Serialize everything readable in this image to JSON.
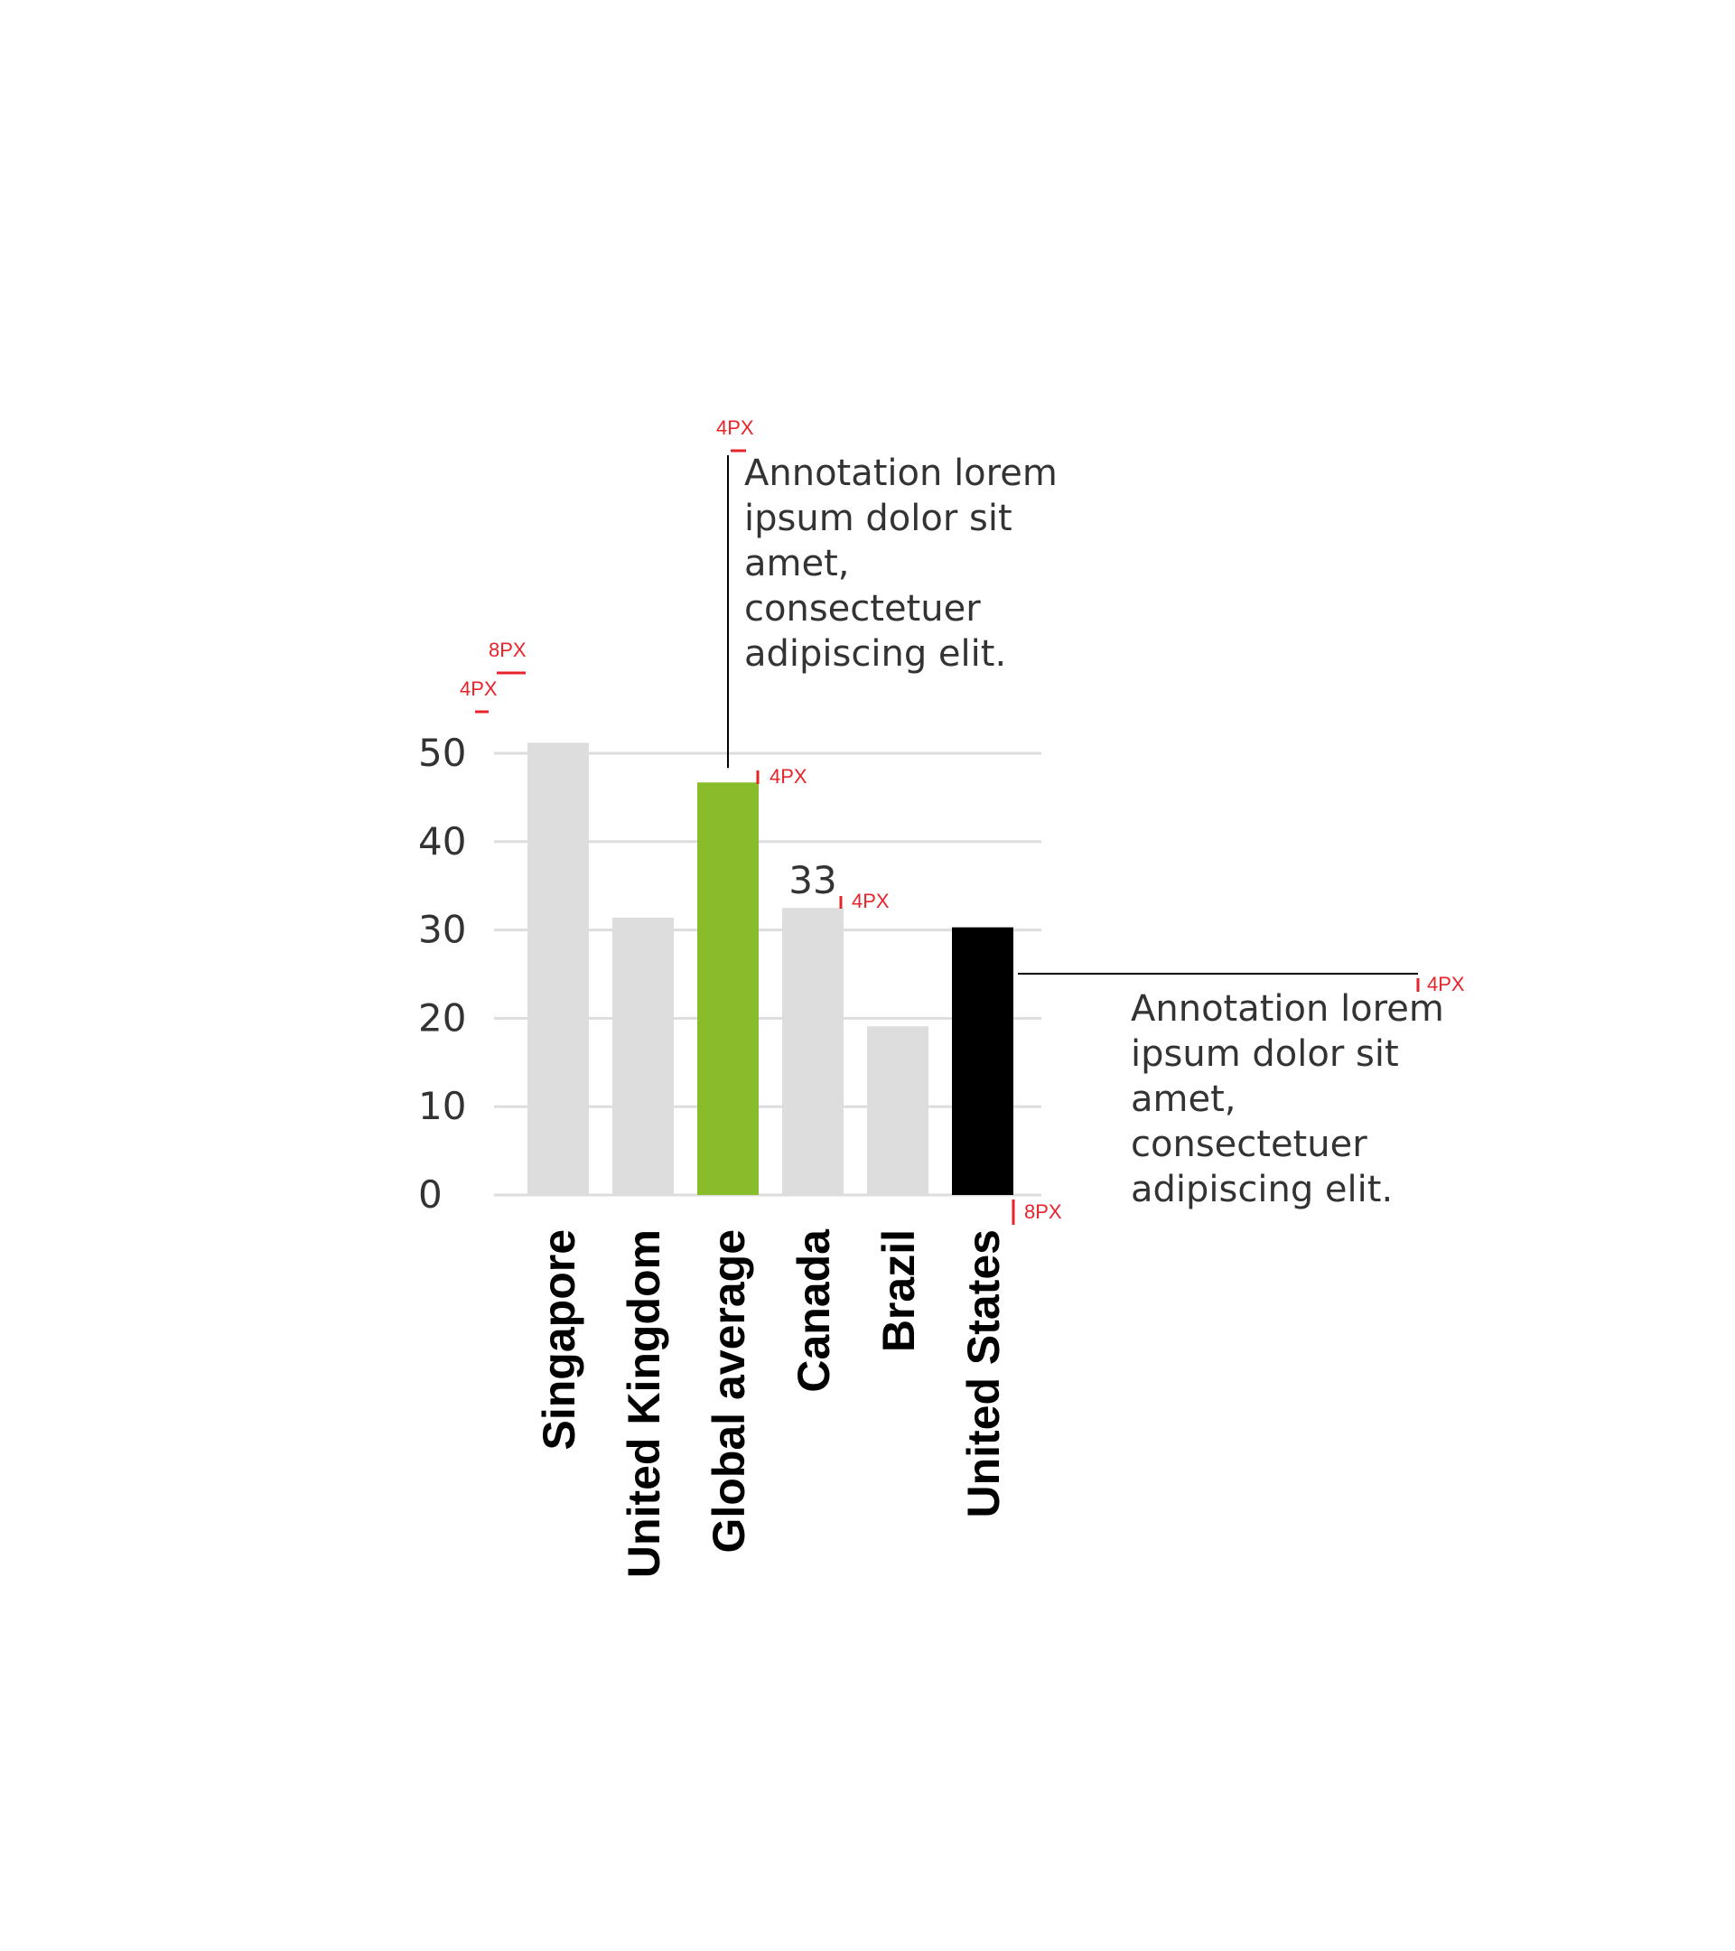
{
  "chart_data": {
    "type": "bar",
    "categories": [
      "Singapore",
      "United Kingdom",
      "Global average",
      "Canada",
      "Brazil",
      "United States"
    ],
    "values": [
      51.2,
      31.4,
      46.7,
      32.5,
      19.1,
      30.3
    ],
    "bar_colors": [
      "#dddddd",
      "#dddddd",
      "#89bc2a",
      "#dddddd",
      "#dddddd",
      "#000000"
    ],
    "yticks": [
      "0",
      "10",
      "20",
      "30",
      "40",
      "50"
    ],
    "ylim": [
      0,
      50
    ],
    "data_labels": [
      {
        "category": "Canada",
        "text": "33"
      }
    ],
    "annotations": [
      {
        "target": "Global average",
        "lines": [
          "Annotation lorem",
          "ipsum dolor sit",
          "amet,",
          "consectetuer",
          "adipiscing elit."
        ]
      },
      {
        "target": "United States",
        "lines": [
          "Annotation lorem",
          "ipsum dolor sit",
          "amet,",
          "consectetuer",
          "adipiscing elit."
        ]
      }
    ],
    "spec_marks": [
      "4PX",
      "8PX",
      "4PX",
      "4PX",
      "4PX",
      "4PX",
      "8PX"
    ],
    "grid": true,
    "legend": "none"
  }
}
